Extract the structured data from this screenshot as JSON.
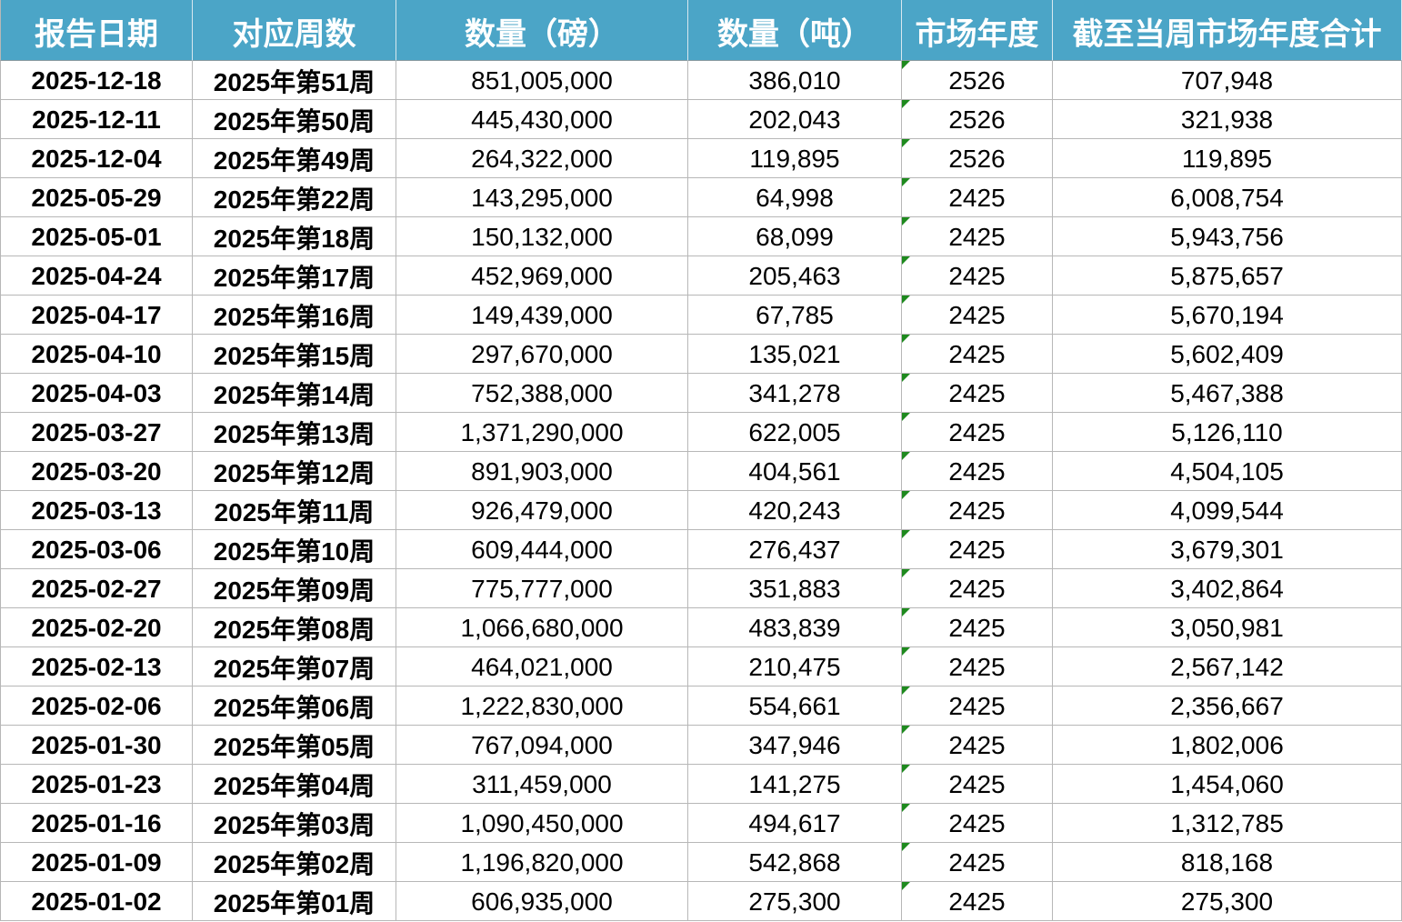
{
  "table": {
    "headers": [
      "报告日期",
      "对应周数",
      "数量（磅）",
      "数量（吨）",
      "市场年度",
      "截至当周市场年度合计"
    ],
    "rows": [
      [
        "2025-12-18",
        "2025年第51周",
        "851,005,000",
        "386,010",
        "2526",
        "707,948"
      ],
      [
        "2025-12-11",
        "2025年第50周",
        "445,430,000",
        "202,043",
        "2526",
        "321,938"
      ],
      [
        "2025-12-04",
        "2025年第49周",
        "264,322,000",
        "119,895",
        "2526",
        "119,895"
      ],
      [
        "2025-05-29",
        "2025年第22周",
        "143,295,000",
        "64,998",
        "2425",
        "6,008,754"
      ],
      [
        "2025-05-01",
        "2025年第18周",
        "150,132,000",
        "68,099",
        "2425",
        "5,943,756"
      ],
      [
        "2025-04-24",
        "2025年第17周",
        "452,969,000",
        "205,463",
        "2425",
        "5,875,657"
      ],
      [
        "2025-04-17",
        "2025年第16周",
        "149,439,000",
        "67,785",
        "2425",
        "5,670,194"
      ],
      [
        "2025-04-10",
        "2025年第15周",
        "297,670,000",
        "135,021",
        "2425",
        "5,602,409"
      ],
      [
        "2025-04-03",
        "2025年第14周",
        "752,388,000",
        "341,278",
        "2425",
        "5,467,388"
      ],
      [
        "2025-03-27",
        "2025年第13周",
        "1,371,290,000",
        "622,005",
        "2425",
        "5,126,110"
      ],
      [
        "2025-03-20",
        "2025年第12周",
        "891,903,000",
        "404,561",
        "2425",
        "4,504,105"
      ],
      [
        "2025-03-13",
        "2025年第11周",
        "926,479,000",
        "420,243",
        "2425",
        "4,099,544"
      ],
      [
        "2025-03-06",
        "2025年第10周",
        "609,444,000",
        "276,437",
        "2425",
        "3,679,301"
      ],
      [
        "2025-02-27",
        "2025年第09周",
        "775,777,000",
        "351,883",
        "2425",
        "3,402,864"
      ],
      [
        "2025-02-20",
        "2025年第08周",
        "1,066,680,000",
        "483,839",
        "2425",
        "3,050,981"
      ],
      [
        "2025-02-13",
        "2025年第07周",
        "464,021,000",
        "210,475",
        "2425",
        "2,567,142"
      ],
      [
        "2025-02-06",
        "2025年第06周",
        "1,222,830,000",
        "554,661",
        "2425",
        "2,356,667"
      ],
      [
        "2025-01-30",
        "2025年第05周",
        "767,094,000",
        "347,946",
        "2425",
        "1,802,006"
      ],
      [
        "2025-01-23",
        "2025年第04周",
        "311,459,000",
        "141,275",
        "2425",
        "1,454,060"
      ],
      [
        "2025-01-16",
        "2025年第03周",
        "1,090,450,000",
        "494,617",
        "2425",
        "1,312,785"
      ],
      [
        "2025-01-09",
        "2025年第02周",
        "1,196,820,000",
        "542,868",
        "2425",
        "818,168"
      ],
      [
        "2025-01-02",
        "2025年第01周",
        "606,935,000",
        "275,300",
        "2425",
        "275,300"
      ]
    ]
  }
}
